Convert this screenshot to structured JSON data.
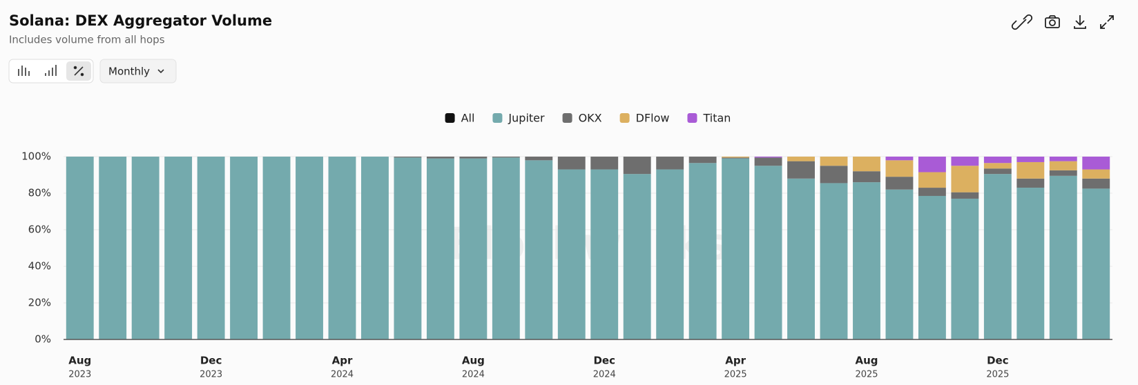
{
  "header": {
    "title": "Solana: DEX Aggregator Volume",
    "subtitle": "Includes volume from all hops"
  },
  "toolbar": {
    "interval": "Monthly"
  },
  "chart_data": {
    "type": "stacked-bar",
    "watermark": "Blockworks",
    "categories": [
      "Aug",
      null,
      null,
      null,
      "Dec",
      null,
      null,
      null,
      "Apr",
      null,
      null,
      null,
      "Aug",
      null,
      null,
      null,
      "Dec",
      null,
      null,
      null,
      "Apr",
      null,
      null,
      null,
      "Aug",
      null,
      null,
      null,
      "Dec",
      null,
      null,
      null
    ],
    "category_years": [
      "2023",
      null,
      null,
      null,
      "2023",
      null,
      null,
      null,
      "2024",
      null,
      null,
      null,
      "2024",
      null,
      null,
      null,
      "2024",
      null,
      null,
      null,
      "2025",
      null,
      null,
      null,
      "2025",
      null,
      null,
      null,
      "2025",
      null,
      null,
      null
    ],
    "series": [
      {
        "name": "All",
        "color": "#111111",
        "values": [
          null,
          null,
          null,
          null,
          null,
          null,
          null,
          null,
          null,
          null,
          null,
          null,
          null,
          null,
          null,
          null,
          null,
          null,
          null,
          null,
          null,
          null,
          null,
          null,
          null,
          null,
          null,
          null,
          null,
          null,
          null,
          null
        ]
      },
      {
        "name": "Jupiter",
        "color": "#74aaad",
        "values": [
          100,
          100,
          100,
          100,
          100,
          100,
          100,
          100,
          100,
          100,
          99.5,
          99,
          99,
          99.5,
          98,
          93,
          93,
          90.5,
          93,
          96.5,
          99,
          95,
          88,
          85.5,
          86,
          82,
          78.5,
          77,
          90.5,
          83,
          89.5,
          82.5
        ]
      },
      {
        "name": "OKX",
        "color": "#6e6e6e",
        "values": [
          null,
          null,
          null,
          null,
          null,
          null,
          null,
          null,
          null,
          null,
          0.5,
          1,
          1,
          0.5,
          2,
          7,
          7,
          9.5,
          7,
          3.5,
          0.5,
          4.5,
          9.5,
          9.5,
          6,
          7,
          4.5,
          3.5,
          3,
          5,
          3,
          5.5
        ]
      },
      {
        "name": "DFlow",
        "color": "#dcb060",
        "values": [
          null,
          null,
          null,
          null,
          null,
          null,
          null,
          null,
          null,
          null,
          null,
          null,
          null,
          null,
          null,
          null,
          null,
          null,
          null,
          null,
          0.5,
          null,
          2.5,
          5,
          8,
          9,
          8.5,
          14.5,
          3,
          9,
          5,
          5
        ]
      },
      {
        "name": "Titan",
        "color": "#a95bd6",
        "values": [
          null,
          null,
          null,
          null,
          null,
          null,
          null,
          null,
          null,
          null,
          null,
          null,
          null,
          null,
          null,
          null,
          null,
          null,
          null,
          null,
          null,
          0.5,
          null,
          null,
          null,
          2,
          8.5,
          5,
          3.5,
          3,
          2.5,
          7
        ]
      }
    ],
    "ylim": [
      0,
      100
    ],
    "yticks": [
      {
        "value": 0,
        "label": "0%"
      },
      {
        "value": 20,
        "label": "20%"
      },
      {
        "value": 40,
        "label": "40%"
      },
      {
        "value": 60,
        "label": "60%"
      },
      {
        "value": 80,
        "label": "80%"
      },
      {
        "value": 100,
        "label": "100%"
      }
    ],
    "grid": true
  }
}
